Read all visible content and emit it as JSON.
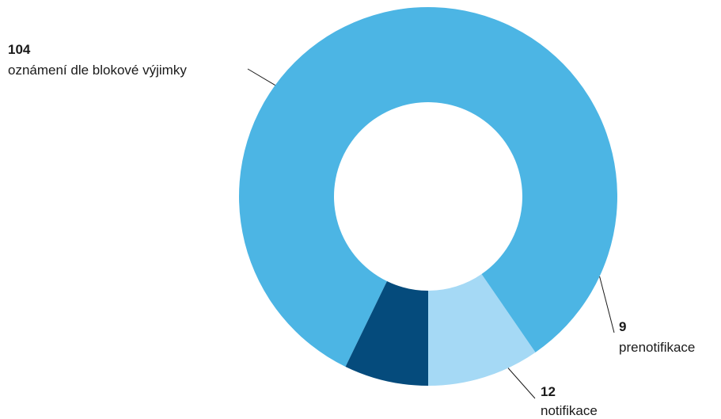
{
  "chart_data": {
    "type": "pie",
    "hole": true,
    "slices": [
      {
        "label": "oznámení dle blokové výjimky",
        "value": 104,
        "color": "#4cb5e4"
      },
      {
        "label": "prenotifikace",
        "value": 9,
        "color": "#054b7c"
      },
      {
        "label": "notifikace",
        "value": 12,
        "color": "#a5d9f5"
      }
    ]
  }
}
